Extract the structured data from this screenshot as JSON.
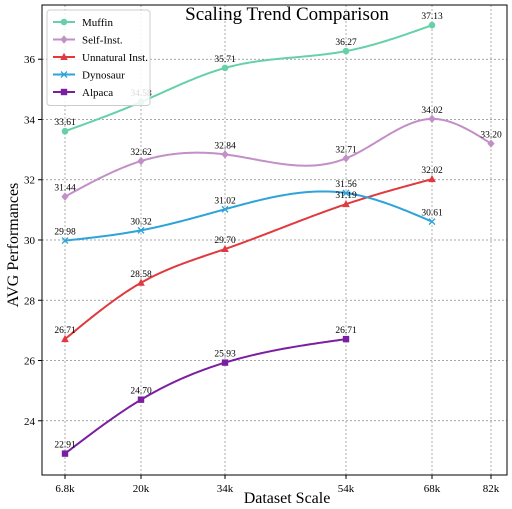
{
  "chart_data": {
    "type": "line",
    "title": "Scaling Trend Comparison",
    "xlabel": "Dataset Scale",
    "ylabel": "AVG Performances",
    "x_categories": [
      "6.8k",
      "20k",
      "34k",
      "54k",
      "68k",
      "82k"
    ],
    "y_ticks": [
      24,
      26,
      28,
      30,
      32,
      34,
      36
    ],
    "ylim": [
      22.2,
      37.8
    ],
    "grid": true,
    "legend_position": "top-left",
    "series": [
      {
        "name": "Muffin",
        "color": "#66d1a8",
        "marker": "circle",
        "points": [
          {
            "x": "6.8k",
            "y": 33.61,
            "label": "33.61"
          },
          {
            "x": "20k",
            "y": 34.58,
            "label": "34.58"
          },
          {
            "x": "34k",
            "y": 35.71,
            "label": "35.71"
          },
          {
            "x": "54k",
            "y": 36.27,
            "label": "36.27"
          },
          {
            "x": "68k",
            "y": 37.13,
            "label": "37.13"
          }
        ]
      },
      {
        "name": "Self-Inst.",
        "color": "#c28fc7",
        "marker": "diamond",
        "points": [
          {
            "x": "6.8k",
            "y": 31.44,
            "label": "31.44"
          },
          {
            "x": "20k",
            "y": 32.62,
            "label": "32.62"
          },
          {
            "x": "34k",
            "y": 32.84,
            "label": "32.84"
          },
          {
            "x": "54k",
            "y": 32.71,
            "label": "32.71"
          },
          {
            "x": "68k",
            "y": 34.02,
            "label": "34.02"
          },
          {
            "x": "82k",
            "y": 33.2,
            "label": "33.20"
          }
        ]
      },
      {
        "name": "Unnatural Inst.",
        "color": "#e0393e",
        "marker": "triangle",
        "points": [
          {
            "x": "6.8k",
            "y": 26.71,
            "label": "26.71"
          },
          {
            "x": "20k",
            "y": 28.58,
            "label": "28.58"
          },
          {
            "x": "34k",
            "y": 29.7,
            "label": "29.70"
          },
          {
            "x": "54k",
            "y": 31.19,
            "label": "31.19"
          },
          {
            "x": "68k",
            "y": 32.02,
            "label": "32.02"
          }
        ]
      },
      {
        "name": "Dynosaur",
        "color": "#2ea3d9",
        "marker": "x",
        "points": [
          {
            "x": "6.8k",
            "y": 29.98,
            "label": "29.98"
          },
          {
            "x": "20k",
            "y": 30.32,
            "label": "30.32"
          },
          {
            "x": "34k",
            "y": 31.02,
            "label": "31.02"
          },
          {
            "x": "54k",
            "y": 31.56,
            "label": "31.56"
          },
          {
            "x": "68k",
            "y": 30.61,
            "label": "30.61"
          }
        ]
      },
      {
        "name": "Alpaca",
        "color": "#7b1fa2",
        "marker": "square",
        "points": [
          {
            "x": "6.8k",
            "y": 22.91,
            "label": "22.91"
          },
          {
            "x": "20k",
            "y": 24.7,
            "label": "24.70"
          },
          {
            "x": "34k",
            "y": 25.93,
            "label": "25.93"
          },
          {
            "x": "54k",
            "y": 26.71,
            "label": "26.71"
          }
        ]
      }
    ]
  }
}
